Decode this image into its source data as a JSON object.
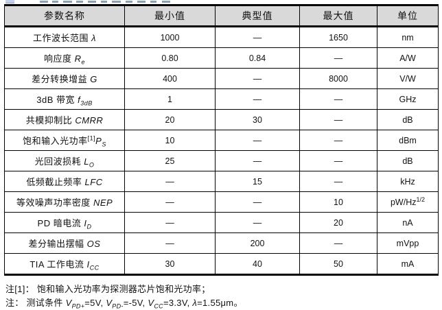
{
  "colors": {
    "header_bg": "#d9d9d9",
    "table_border": "#000000",
    "text": "#111111",
    "heading_remnant_blue": "#c3d2e8"
  },
  "table": {
    "headers": [
      "参数名称",
      "最小值",
      "典型值",
      "最大值",
      "单位"
    ],
    "rows": [
      {
        "param": [
          {
            "t": "工作波长范围 "
          },
          {
            "t": "λ",
            "s": "i"
          }
        ],
        "min": "1000",
        "typ": "—",
        "max": "1650",
        "unit": [
          {
            "t": "nm"
          }
        ]
      },
      {
        "param": [
          {
            "t": "响应度 "
          },
          {
            "t": "R",
            "s": "i"
          },
          {
            "t": "e",
            "s": "isub"
          }
        ],
        "min": "0.80",
        "typ": "0.84",
        "max": "—",
        "unit": [
          {
            "t": "A/W"
          }
        ]
      },
      {
        "param": [
          {
            "t": "差分转换增益 "
          },
          {
            "t": "G",
            "s": "i"
          }
        ],
        "min": "400",
        "typ": "—",
        "max": "8000",
        "unit": [
          {
            "t": "V/W"
          }
        ]
      },
      {
        "param": [
          {
            "t": "3dB 带宽 "
          },
          {
            "t": "f",
            "s": "i"
          },
          {
            "t": "3dB",
            "s": "isub"
          }
        ],
        "min": "1",
        "typ": "—",
        "max": "—",
        "unit": [
          {
            "t": "GHz"
          }
        ]
      },
      {
        "param": [
          {
            "t": "共模抑制比 "
          },
          {
            "t": "CMRR",
            "s": "i"
          }
        ],
        "min": "20",
        "typ": "30",
        "max": "—",
        "unit": [
          {
            "t": "dB"
          }
        ]
      },
      {
        "param": [
          {
            "t": "饱和输入光功率"
          },
          {
            "t": "[1]",
            "s": "sup"
          },
          {
            "t": "P",
            "s": "i"
          },
          {
            "t": "S",
            "s": "isub"
          }
        ],
        "min": "10",
        "typ": "—",
        "max": "—",
        "unit": [
          {
            "t": "dBm"
          }
        ]
      },
      {
        "param": [
          {
            "t": "光回波损耗 "
          },
          {
            "t": "L",
            "s": "i"
          },
          {
            "t": "O",
            "s": "isub"
          }
        ],
        "min": "25",
        "typ": "—",
        "max": "—",
        "unit": [
          {
            "t": "dB"
          }
        ]
      },
      {
        "param": [
          {
            "t": "低频截止频率 "
          },
          {
            "t": "LFC",
            "s": "i"
          }
        ],
        "min": "—",
        "typ": "15",
        "max": "—",
        "unit": [
          {
            "t": "kHz"
          }
        ]
      },
      {
        "param": [
          {
            "t": "等效噪声功率密度 "
          },
          {
            "t": "NEP",
            "s": "i"
          }
        ],
        "min": "—",
        "typ": "—",
        "max": "10",
        "unit": [
          {
            "t": "pW/Hz"
          },
          {
            "t": "1/2",
            "s": "sup"
          }
        ]
      },
      {
        "param": [
          {
            "t": "PD 暗电流 "
          },
          {
            "t": "I",
            "s": "i"
          },
          {
            "t": "D",
            "s": "isub"
          }
        ],
        "min": "—",
        "typ": "—",
        "max": "20",
        "unit": [
          {
            "t": "nA"
          }
        ]
      },
      {
        "param": [
          {
            "t": "差分输出摆幅 "
          },
          {
            "t": "OS",
            "s": "i"
          }
        ],
        "min": "—",
        "typ": "200",
        "max": "—",
        "unit": [
          {
            "t": "mVpp"
          }
        ]
      },
      {
        "param": [
          {
            "t": "TIA 工作电流 "
          },
          {
            "t": "I",
            "s": "i"
          },
          {
            "t": "CC",
            "s": "isub"
          }
        ],
        "min": "30",
        "typ": "40",
        "max": "50",
        "unit": [
          {
            "t": "mA"
          }
        ]
      }
    ]
  },
  "notes": [
    [
      {
        "t": "注[1]： 饱和输入光功率为探测器芯片饱和光功率；"
      }
    ],
    [
      {
        "t": "注： 测试条件 "
      },
      {
        "t": "V",
        "s": "i"
      },
      {
        "t": "PD+",
        "s": "isub"
      },
      {
        "t": "=5V, "
      },
      {
        "t": "V",
        "s": "i"
      },
      {
        "t": "PD-",
        "s": "isub"
      },
      {
        "t": "=-5V, "
      },
      {
        "t": "V",
        "s": "i"
      },
      {
        "t": "CC",
        "s": "isub"
      },
      {
        "t": "=3.3V, "
      },
      {
        "t": "λ",
        "s": "i"
      },
      {
        "t": "=1.55μm。"
      }
    ]
  ]
}
